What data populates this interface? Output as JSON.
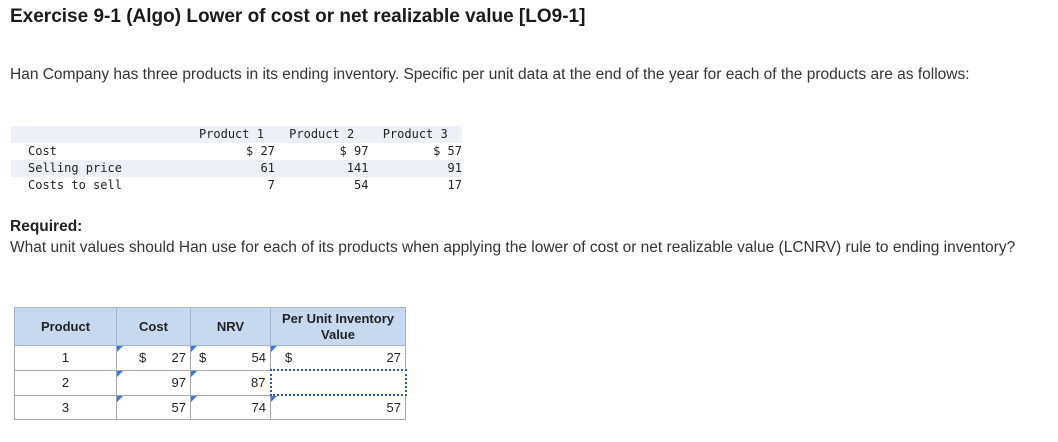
{
  "title": "Exercise 9-1 (Algo) Lower of cost or net realizable value [LO9-1]",
  "description": "Han Company has three products in its ending inventory. Specific per unit data at the end of the year for each of the products are as follows:",
  "data_table": {
    "headers": [
      "Product 1",
      "Product 2",
      "Product 3"
    ],
    "rows": [
      {
        "label": "Cost",
        "values": [
          "$ 27",
          "$ 97",
          "$ 57"
        ]
      },
      {
        "label": "Selling price",
        "values": [
          "61",
          "141",
          "91"
        ]
      },
      {
        "label": "Costs to sell",
        "values": [
          "7",
          "54",
          "17"
        ]
      }
    ]
  },
  "required": {
    "heading": "Required:",
    "question": "What unit values should Han use for each of its products when applying the lower of cost or net realizable value (LCNRV) rule to ending inventory?"
  },
  "answer_table": {
    "headers": [
      "Product",
      "Cost",
      "NRV",
      "Per Unit Inventory Value"
    ],
    "currency_symbol": "$",
    "rows": [
      {
        "product": "1",
        "cost": "27",
        "nrv": "54",
        "inventory_value": "27"
      },
      {
        "product": "2",
        "cost": "97",
        "nrv": "87",
        "inventory_value": ""
      },
      {
        "product": "3",
        "cost": "57",
        "nrv": "74",
        "inventory_value": "57"
      }
    ]
  },
  "colors": {
    "header_bg": "#c7d9ef",
    "input_flag": "#3a78d8",
    "row_shade": "#eef0f8"
  }
}
